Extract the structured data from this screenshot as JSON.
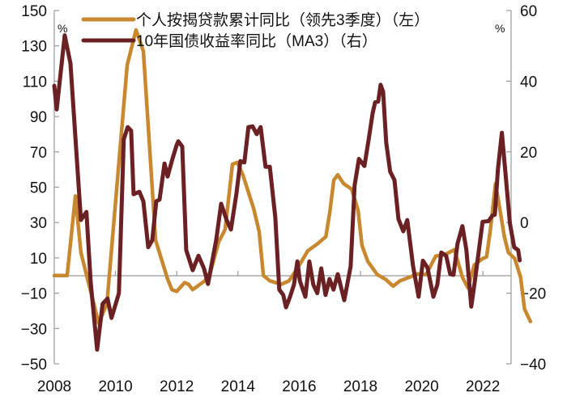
{
  "chart_data": {
    "type": "line",
    "title": "",
    "xlabel": "",
    "ylabel_left": "%",
    "ylabel_right": "%",
    "x_ticks": [
      "2008",
      "2010",
      "2012",
      "2014",
      "2016",
      "2018",
      "2020",
      "2022"
    ],
    "x_range": [
      2008,
      2023.0
    ],
    "ylim_left": [
      -50,
      150
    ],
    "yticks_left": [
      "150",
      "130",
      "110",
      "90",
      "70",
      "50",
      "30",
      "10",
      "-10",
      "-30",
      "-50"
    ],
    "ylim_right": [
      -40,
      60
    ],
    "yticks_right": [
      "60",
      "40",
      "20",
      "0",
      "-20",
      "-40"
    ],
    "legend_position": "top-left",
    "grid": false,
    "colors": {
      "mortgage": "#C8882F",
      "bond": "#6B2023",
      "axis": "#999999",
      "text": "#111111"
    },
    "series": [
      {
        "name": "个人按揭贷款累计同比（领先3季度）（左）",
        "axis": "left",
        "points": [
          [
            2008.0,
            0
          ],
          [
            2008.42,
            0
          ],
          [
            2008.6,
            30
          ],
          [
            2008.69,
            45
          ],
          [
            2008.87,
            13
          ],
          [
            2009.45,
            -27
          ],
          [
            2009.72,
            -16
          ],
          [
            2010.38,
            119
          ],
          [
            2010.67,
            139
          ],
          [
            2010.91,
            127
          ],
          [
            2011.31,
            20
          ],
          [
            2011.7,
            -2
          ],
          [
            2011.84,
            -8
          ],
          [
            2012.0,
            -9
          ],
          [
            2012.26,
            -4
          ],
          [
            2012.39,
            -5
          ],
          [
            2012.52,
            -8
          ],
          [
            2012.76,
            -5
          ],
          [
            2012.92,
            -3
          ],
          [
            2013.1,
            2
          ],
          [
            2013.37,
            19
          ],
          [
            2013.58,
            26
          ],
          [
            2013.71,
            46
          ],
          [
            2013.82,
            63
          ],
          [
            2013.98,
            64
          ],
          [
            2014.16,
            57
          ],
          [
            2014.51,
            38
          ],
          [
            2014.69,
            25
          ],
          [
            2014.83,
            0
          ],
          [
            2015.04,
            -3
          ],
          [
            2015.41,
            -5
          ],
          [
            2015.67,
            -3
          ],
          [
            2015.94,
            4
          ],
          [
            2016.28,
            14
          ],
          [
            2016.6,
            18
          ],
          [
            2016.87,
            22
          ],
          [
            2017.0,
            36
          ],
          [
            2017.13,
            54
          ],
          [
            2017.26,
            57
          ],
          [
            2017.45,
            52
          ],
          [
            2017.71,
            49
          ],
          [
            2017.92,
            37
          ],
          [
            2018.05,
            17
          ],
          [
            2018.24,
            8
          ],
          [
            2018.55,
            0.5
          ],
          [
            2018.81,
            -2
          ],
          [
            2019.07,
            -6
          ],
          [
            2019.29,
            -3
          ],
          [
            2019.6,
            -1
          ],
          [
            2019.87,
            1
          ],
          [
            2020.14,
            0.5
          ],
          [
            2020.46,
            11
          ],
          [
            2020.78,
            12
          ],
          [
            2021.07,
            14.6
          ],
          [
            2021.33,
            -1
          ],
          [
            2021.51,
            -7
          ],
          [
            2021.72,
            6
          ],
          [
            2021.99,
            9.6
          ],
          [
            2022.12,
            10.5
          ],
          [
            2022.25,
            26.5
          ],
          [
            2022.41,
            52
          ],
          [
            2022.51,
            42
          ],
          [
            2022.7,
            22
          ],
          [
            2022.83,
            13
          ],
          [
            2023.04,
            9.6
          ],
          [
            2023.23,
            -1
          ],
          [
            2023.36,
            -19
          ],
          [
            2023.55,
            -26
          ]
        ]
      },
      {
        "name": "10年国债收益率同比（MA3）（右）",
        "axis": "right",
        "points": [
          [
            2008.0,
            38.7
          ],
          [
            2008.08,
            32
          ],
          [
            2008.34,
            53
          ],
          [
            2008.53,
            45
          ],
          [
            2008.87,
            0.7
          ],
          [
            2009.05,
            3
          ],
          [
            2009.19,
            -17
          ],
          [
            2009.4,
            -36
          ],
          [
            2009.58,
            -23
          ],
          [
            2009.74,
            -21.5
          ],
          [
            2009.87,
            -27
          ],
          [
            2010.11,
            -20
          ],
          [
            2010.27,
            23.6
          ],
          [
            2010.4,
            27
          ],
          [
            2010.51,
            26
          ],
          [
            2010.59,
            8
          ],
          [
            2010.78,
            8.7
          ],
          [
            2010.91,
            6
          ],
          [
            2011.07,
            -7
          ],
          [
            2011.2,
            -5
          ],
          [
            2011.33,
            6
          ],
          [
            2011.44,
            6.5
          ],
          [
            2011.6,
            16.7
          ],
          [
            2011.7,
            13
          ],
          [
            2011.86,
            18
          ],
          [
            2012.0,
            22
          ],
          [
            2012.05,
            23
          ],
          [
            2012.18,
            21.5
          ],
          [
            2012.31,
            -7.8
          ],
          [
            2012.52,
            -13.5
          ],
          [
            2012.71,
            -9.4
          ],
          [
            2012.89,
            -13
          ],
          [
            2013.02,
            -17.4
          ],
          [
            2013.29,
            -4.8
          ],
          [
            2013.45,
            5.3
          ],
          [
            2013.63,
            0.7
          ],
          [
            2013.77,
            -2
          ],
          [
            2013.95,
            8.2
          ],
          [
            2014.08,
            17.4
          ],
          [
            2014.21,
            17
          ],
          [
            2014.34,
            27
          ],
          [
            2014.48,
            27.2
          ],
          [
            2014.61,
            25
          ],
          [
            2014.74,
            27
          ],
          [
            2014.9,
            15.8
          ],
          [
            2015.04,
            15.8
          ],
          [
            2015.22,
            1.4
          ],
          [
            2015.35,
            -19
          ],
          [
            2015.48,
            -20.5
          ],
          [
            2015.57,
            -24
          ],
          [
            2015.7,
            -21
          ],
          [
            2015.83,
            -17.5
          ],
          [
            2015.94,
            -11
          ],
          [
            2016.02,
            -16.5
          ],
          [
            2016.2,
            -21
          ],
          [
            2016.33,
            -11
          ],
          [
            2016.46,
            -17.6
          ],
          [
            2016.59,
            -20
          ],
          [
            2016.72,
            -13
          ],
          [
            2016.86,
            -20.5
          ],
          [
            2016.99,
            -16
          ],
          [
            2017.12,
            -19
          ],
          [
            2017.26,
            -14.6
          ],
          [
            2017.47,
            -22
          ],
          [
            2017.68,
            -12.4
          ],
          [
            2017.81,
            10.5
          ],
          [
            2017.95,
            18
          ],
          [
            2018.13,
            16
          ],
          [
            2018.27,
            23.6
          ],
          [
            2018.4,
            31
          ],
          [
            2018.48,
            34
          ],
          [
            2018.58,
            34.2
          ],
          [
            2018.66,
            39
          ],
          [
            2018.74,
            37
          ],
          [
            2018.84,
            22.6
          ],
          [
            2018.97,
            14.4
          ],
          [
            2019.11,
            12
          ],
          [
            2019.24,
            1
          ],
          [
            2019.4,
            -2.5
          ],
          [
            2019.53,
            0.7
          ],
          [
            2019.72,
            -12.4
          ],
          [
            2019.9,
            -21
          ],
          [
            2020.04,
            -10.8
          ],
          [
            2020.19,
            -12.8
          ],
          [
            2020.38,
            -21
          ],
          [
            2020.51,
            -17.6
          ],
          [
            2020.64,
            -8.5
          ],
          [
            2020.8,
            -9.4
          ],
          [
            2020.93,
            -14.6
          ],
          [
            2021.04,
            -14.8
          ],
          [
            2021.17,
            -6
          ],
          [
            2021.33,
            -1
          ],
          [
            2021.46,
            -7.8
          ],
          [
            2021.62,
            -23.8
          ],
          [
            2021.73,
            -17
          ],
          [
            2021.99,
            0.2
          ],
          [
            2022.18,
            0.4
          ],
          [
            2022.31,
            2
          ],
          [
            2022.39,
            2.2
          ],
          [
            2022.49,
            15
          ],
          [
            2022.62,
            25.4
          ],
          [
            2022.75,
            12.8
          ],
          [
            2022.88,
            -0.2
          ],
          [
            2023.02,
            -7
          ],
          [
            2023.15,
            -7.8
          ],
          [
            2023.2,
            -10.7
          ]
        ]
      }
    ]
  },
  "legend": {
    "items": [
      {
        "label": "个人按揭贷款累计同比（领先3季度）（左）"
      },
      {
        "label": "10年国债收益率同比（MA3）（右）"
      }
    ]
  }
}
